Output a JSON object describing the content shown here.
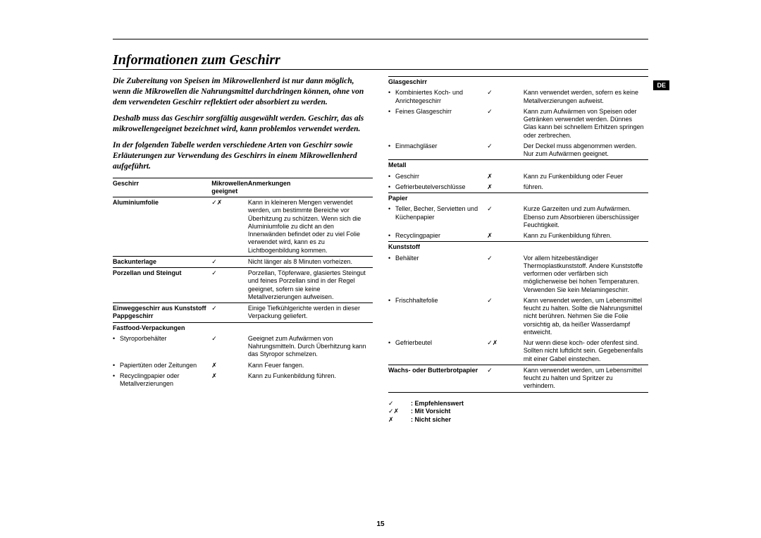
{
  "page_number": "15",
  "language_code": "DE",
  "heading": "Informationen zum Geschirr",
  "intro_paragraphs": [
    "Die Zubereitung von Speisen im Mikrowellenherd ist nur dann möglich, wenn die Mikrowellen die Nahrungsmittel durchdringen können, ohne von dem verwendeten Geschirr reflektiert oder absorbiert zu werden.",
    "Deshalb muss das Geschirr sorgfältig ausgewählt werden. Geschirr, das als mikrowellengeeignet bezeichnet wird, kann problemlos verwendet werden.",
    "In der folgenden Tabelle werden verschiedene Arten von Geschirr sowie Erläuterungen zur Verwendung des Geschirrs in einem Mikrowellenherd aufgeführt."
  ],
  "table_headers": {
    "c1": "Geschirr",
    "c2": "Mikrowellen geeignet",
    "c3": "Anmerkungen"
  },
  "symbols": {
    "ok": "✓",
    "bad": "✗",
    "okbad": "✓✗"
  },
  "left_rows": [
    {
      "type": "header"
    },
    {
      "type": "row",
      "hline": true,
      "bold": true,
      "c1": "Aluminiumfolie",
      "c2": "okbad",
      "c3": "Kann in kleineren Mengen verwendet werden, um bestimmte Bereiche vor Überhitzung zu schützen. Wenn sich die Aluminiumfolie zu dicht an den Innenwänden befindet oder zu viel Folie verwendet wird, kann es zu Lichtbogenbildung kommen."
    },
    {
      "type": "row",
      "hline": true,
      "bold": true,
      "c1": "Backunterlage",
      "c2": "ok",
      "c3": "Nicht länger als 8 Minuten vorheizen."
    },
    {
      "type": "row",
      "hline": true,
      "bold": true,
      "c1": "Porzellan und Steingut",
      "c2": "ok",
      "c3": "Porzellan, Töpferware, glasiertes Steingut und feines Porzellan sind in der Regel geeignet, sofern sie keine Metallverzierungen aufweisen."
    },
    {
      "type": "row",
      "hline": true,
      "bold": true,
      "c1": "Einweggeschirr aus Kunststoff Pappgeschirr",
      "c2": "ok",
      "c3": "Einige Tiefkühlgerichte werden in dieser Verpackung geliefert."
    },
    {
      "type": "row",
      "hline": true,
      "bold": true,
      "c1": "Fastfood-Verpackungen",
      "c2": "",
      "c3": ""
    },
    {
      "type": "sub",
      "c1": "Styroporbehälter",
      "c2": "ok",
      "c3": "Geeignet zum Aufwärmen von Nahrungsmitteln. Durch Überhitzung kann das Styropor schmelzen."
    },
    {
      "type": "sub",
      "c1": "Papiertüten oder Zeitungen",
      "c2": "bad",
      "c3": "Kann Feuer fangen."
    },
    {
      "type": "sub",
      "c1": "Recyclingpapier oder Metallverzierungen",
      "c2": "bad",
      "c3": "Kann zu Funkenbildung führen."
    }
  ],
  "right_rows": [
    {
      "type": "row",
      "hline": true,
      "bold": true,
      "c1": "Glasgeschirr",
      "c2": "",
      "c3": ""
    },
    {
      "type": "sub",
      "c1": "Kombiniertes Koch- und Anrichtegeschirr",
      "c2": "ok",
      "c3": "Kann verwendet werden, sofern es keine Metallverzierungen aufweist."
    },
    {
      "type": "sub",
      "c1": "Feines Glasgeschirr",
      "c2": "ok",
      "c3": "Kann zum Aufwärmen von Speisen oder Getränken verwendet werden. Dünnes Glas kann bei schnellem Erhitzen springen oder zerbrechen."
    },
    {
      "type": "sub",
      "c1": "Einmachgläser",
      "c2": "ok",
      "c3": "Der Deckel muss abgenommen werden. Nur zum Aufwärmen geeignet."
    },
    {
      "type": "row",
      "hline": true,
      "bold": true,
      "c1": "Metall",
      "c2": "",
      "c3": ""
    },
    {
      "type": "sub",
      "c1": "Geschirr",
      "c2": "bad",
      "c3": "Kann zu Funkenbildung oder Feuer"
    },
    {
      "type": "sub",
      "c1": "Gefrierbeutelverschlüsse",
      "c2": "bad",
      "c3": "führen."
    },
    {
      "type": "row",
      "hline": true,
      "bold": true,
      "c1": "Papier",
      "c2": "",
      "c3": ""
    },
    {
      "type": "sub",
      "c1": "Teller, Becher, Servietten und Küchenpapier",
      "c2": "ok",
      "c3": "Kurze Garzeiten und zum Aufwärmen. Ebenso zum Absorbieren überschüssiger Feuchtigkeit."
    },
    {
      "type": "sub",
      "c1": "Recyclingpapier",
      "c2": "bad",
      "c3": "Kann zu Funkenbildung führen."
    },
    {
      "type": "row",
      "hline": true,
      "bold": true,
      "c1": "Kunststoff",
      "c2": "",
      "c3": ""
    },
    {
      "type": "sub",
      "c1": "Behälter",
      "c2": "ok",
      "c3": "Vor allem hitzebeständiger Thermoplastkunststoff. Andere Kunststoffe verformen oder verfärben sich möglicherweise bei hohen Temperaturen. Verwenden Sie kein Melamingeschirr."
    },
    {
      "type": "sub",
      "c1": "Frischhaltefolie",
      "c2": "ok",
      "c3": "Kann verwendet werden, um Lebensmittel feucht zu halten. Sollte die Nahrungsmittel nicht berühren. Nehmen Sie die Folie vorsichtig ab, da heißer Wasserdampf entweicht."
    },
    {
      "type": "sub",
      "c1": "Gefrierbeutel",
      "c2": "okbad",
      "c3": "Nur wenn diese koch- oder ofenfest sind. Sollten nicht luftdicht sein. Gegebenenfalls mit einer Gabel einstechen."
    },
    {
      "type": "row",
      "hline": true,
      "bold": true,
      "c1": "Wachs- oder Butterbrotpapier",
      "c2": "ok",
      "c3": "Kann verwendet werden, um Lebensmittel feucht zu halten und Spritzer zu verhindern."
    },
    {
      "type": "hlineonly"
    }
  ],
  "legend": [
    {
      "sym": "ok",
      "label": ": Empfehlenswert"
    },
    {
      "sym": "okbad",
      "label": ": Mit Vorsicht"
    },
    {
      "sym": "bad",
      "label": ": Nicht sicher"
    }
  ]
}
